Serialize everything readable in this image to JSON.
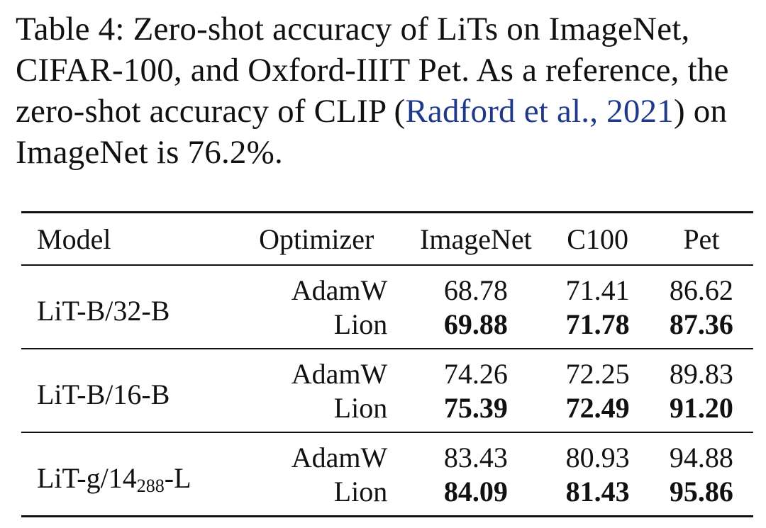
{
  "caption": {
    "lead": "Table 4: Zero-shot accuracy of LiTs on ImageNet, CIFAR-100, and Oxford-IIIT Pet. As a reference, the zero-shot accuracy of CLIP (",
    "cite": "Radford et al., 2021",
    "tail": ") on ImageNet is 76.2%."
  },
  "table": {
    "headers": [
      "Model",
      "Optimizer",
      "ImageNet",
      "C100",
      "Pet"
    ],
    "groups": [
      {
        "model": "LiT-B/32-B",
        "rows": [
          {
            "optimizer": "AdamW",
            "imagenet": "68.78",
            "c100": "71.41",
            "pet": "86.62"
          },
          {
            "optimizer": "Lion",
            "imagenet": "69.88",
            "c100": "71.78",
            "pet": "87.36"
          }
        ]
      },
      {
        "model": "LiT-B/16-B",
        "rows": [
          {
            "optimizer": "AdamW",
            "imagenet": "74.26",
            "c100": "72.25",
            "pet": "89.83"
          },
          {
            "optimizer": "Lion",
            "imagenet": "75.39",
            "c100": "72.49",
            "pet": "91.20"
          }
        ]
      },
      {
        "model": "LiT-g/14",
        "model_sub": "288",
        "model_suffix": "-L",
        "rows": [
          {
            "optimizer": "AdamW",
            "imagenet": "83.43",
            "c100": "80.93",
            "pet": "94.88"
          },
          {
            "optimizer": "Lion",
            "imagenet": "84.09",
            "c100": "81.43",
            "pet": "95.86"
          }
        ]
      }
    ]
  },
  "colors": {
    "text": "#111111",
    "citation": "#1f3a8a",
    "background": "#ffffff"
  }
}
